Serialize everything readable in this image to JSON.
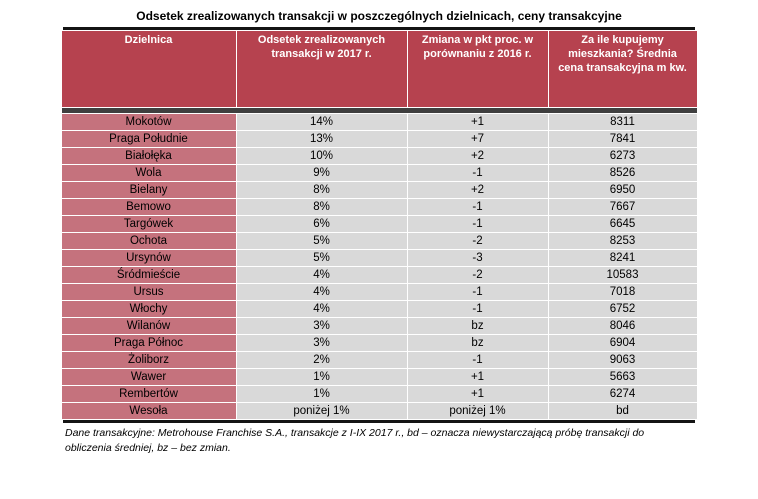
{
  "title": "Odsetek zrealizowanych transakcji w poszczególnych dzielnicach, ceny transakcyjne",
  "footnote": "Dane transakcyjne: Metrohouse Franchise S.A., transakcje z I-IX 2017 r.,  bd – oznacza niewystarczającą próbę transakcji do obliczenia średniej, bz – bez zmian.",
  "colors": {
    "header_bg": "#b6424f",
    "district_bg": "#c5727d",
    "cell_bg": "#d9d9d9",
    "separator": "#3f3f3f",
    "rule": "#141414"
  },
  "chart_data": {
    "type": "table",
    "title": "Odsetek zrealizowanych transakcji w poszczególnych dzielnicach, ceny transakcyjne",
    "columns": [
      "Dzielnica",
      "Odsetek zrealizowanych transakcji w 2017 r.",
      "Zmiana w pkt proc. w porównaniu z 2016 r.",
      "Za ile kupujemy mieszkania? Średnia cena transakcyjna m kw."
    ],
    "rows": [
      [
        "Mokotów",
        "14%",
        "+1",
        "8311"
      ],
      [
        "Praga Południe",
        "13%",
        "+7",
        "7841"
      ],
      [
        "Białołęka",
        "10%",
        "+2",
        "6273"
      ],
      [
        "Wola",
        "9%",
        "-1",
        "8526"
      ],
      [
        "Bielany",
        "8%",
        "+2",
        "6950"
      ],
      [
        "Bemowo",
        "8%",
        "-1",
        "7667"
      ],
      [
        "Targówek",
        "6%",
        "-1",
        "6645"
      ],
      [
        "Ochota",
        "5%",
        "-2",
        "8253"
      ],
      [
        "Ursynów",
        "5%",
        "-3",
        "8241"
      ],
      [
        "Śródmieście",
        "4%",
        "-2",
        "10583"
      ],
      [
        "Ursus",
        "4%",
        "-1",
        "7018"
      ],
      [
        "Włochy",
        "4%",
        "-1",
        "6752"
      ],
      [
        "Wilanów",
        "3%",
        "bz",
        "8046"
      ],
      [
        "Praga Północ",
        "3%",
        "bz",
        "6904"
      ],
      [
        "Żoliborz",
        "2%",
        "-1",
        "9063"
      ],
      [
        "Wawer",
        "1%",
        "+1",
        "5663"
      ],
      [
        "Rembertów",
        "1%",
        "+1",
        "6274"
      ],
      [
        "Wesoła",
        "poniżej 1%",
        "poniżej 1%",
        "bd"
      ]
    ]
  }
}
